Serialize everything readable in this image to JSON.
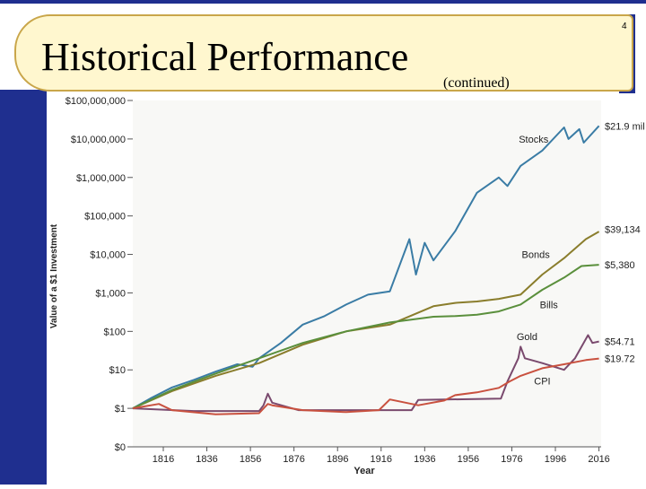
{
  "slide": {
    "title": "Historical Performance",
    "subtitle": "(continued)",
    "page_number": "4"
  },
  "colors": {
    "stocks": "#3a7ca5",
    "bonds": "#8a7d2c",
    "bills": "#5a8f3c",
    "gold": "#7a4a6e",
    "cpi": "#c9513f",
    "banner": "#fff7cf",
    "sidebar": "#1f2f8f"
  },
  "chart_data": {
    "type": "line",
    "title": "",
    "xlabel": "Year",
    "ylabel": "Value of a $1 Investment",
    "y_scale": "log",
    "xlim": [
      1802,
      2017
    ],
    "ylim_exponent": [
      -1,
      8
    ],
    "x_ticks": [
      "1816",
      "1836",
      "1856",
      "1876",
      "1896",
      "1916",
      "1936",
      "1956",
      "1976",
      "1996",
      "2016"
    ],
    "x_tick_values": [
      1816,
      1836,
      1856,
      1876,
      1896,
      1916,
      1936,
      1956,
      1976,
      1996,
      2016
    ],
    "y_ticks": [
      "$0",
      "$1",
      "$10",
      "$100",
      "$1,000",
      "$10,000",
      "$100,000",
      "$1,000,000",
      "$10,000,000",
      "$100,000,000"
    ],
    "y_tick_values": [
      0.1,
      1,
      10,
      100,
      1000,
      10000,
      100000,
      1000000,
      10000000,
      100000000
    ],
    "series": [
      {
        "name": "Stocks",
        "end_label": "$21.9 mil",
        "color_key": "stocks",
        "x": [
          1802,
          1810,
          1820,
          1830,
          1840,
          1850,
          1857,
          1860,
          1870,
          1880,
          1890,
          1900,
          1910,
          1920,
          1929,
          1932,
          1936,
          1940,
          1950,
          1960,
          1970,
          1974,
          1980,
          1990,
          2000,
          2002,
          2007,
          2009,
          2016
        ],
        "y": [
          1,
          1.8,
          3.5,
          5.5,
          9,
          14,
          12,
          20,
          50,
          150,
          250,
          500,
          900,
          1100,
          25000,
          3000,
          20000,
          7000,
          40000,
          400000,
          1000000,
          600000,
          2000000,
          5000000,
          20000000,
          10000000,
          18000000,
          8000000,
          21900000
        ]
      },
      {
        "name": "Bonds",
        "end_label": "$39,134",
        "color_key": "bonds",
        "x": [
          1802,
          1820,
          1840,
          1860,
          1880,
          1900,
          1920,
          1940,
          1950,
          1960,
          1970,
          1980,
          1990,
          2000,
          2010,
          2016
        ],
        "y": [
          1,
          2.8,
          7,
          15,
          45,
          100,
          150,
          450,
          550,
          600,
          700,
          900,
          3000,
          8000,
          25000,
          39134
        ]
      },
      {
        "name": "Bills",
        "end_label": "$5,380",
        "color_key": "bills",
        "x": [
          1802,
          1820,
          1840,
          1860,
          1880,
          1900,
          1920,
          1940,
          1950,
          1960,
          1970,
          1980,
          1990,
          2000,
          2008,
          2016
        ],
        "y": [
          1,
          3,
          8,
          20,
          50,
          100,
          170,
          240,
          250,
          270,
          330,
          500,
          1200,
          2500,
          5000,
          5380
        ]
      },
      {
        "name": "Gold",
        "end_label": "$54.71",
        "color_key": "gold",
        "x": [
          1802,
          1830,
          1860,
          1862,
          1864,
          1866,
          1878,
          1930,
          1933,
          1971,
          1974,
          1979,
          1980,
          1982,
          1985,
          1990,
          2000,
          2005,
          2011,
          2013,
          2016
        ],
        "y": [
          1,
          0.85,
          0.85,
          1.2,
          2.4,
          1.4,
          0.9,
          0.9,
          1.65,
          1.8,
          5,
          20,
          40,
          20,
          18,
          15,
          10,
          20,
          80,
          50,
          54.71
        ]
      },
      {
        "name": "CPI",
        "end_label": "$19.72",
        "color_key": "cpi",
        "x": [
          1802,
          1814,
          1820,
          1840,
          1860,
          1864,
          1866,
          1880,
          1900,
          1915,
          1920,
          1933,
          1945,
          1950,
          1960,
          1970,
          1975,
          1980,
          1990,
          2000,
          2010,
          2016
        ],
        "y": [
          1,
          1.3,
          0.9,
          0.7,
          0.75,
          1.3,
          1.2,
          0.9,
          0.8,
          0.9,
          1.7,
          1.2,
          1.6,
          2.2,
          2.6,
          3.4,
          5,
          7,
          11,
          14,
          18,
          19.72
        ]
      }
    ],
    "annotations": [
      {
        "text": "Stocks",
        "series": "Stocks"
      },
      {
        "text": "Bonds",
        "series": "Bonds"
      },
      {
        "text": "Bills",
        "series": "Bills"
      },
      {
        "text": "Gold",
        "series": "Gold"
      },
      {
        "text": "CPI",
        "series": "CPI"
      }
    ]
  }
}
